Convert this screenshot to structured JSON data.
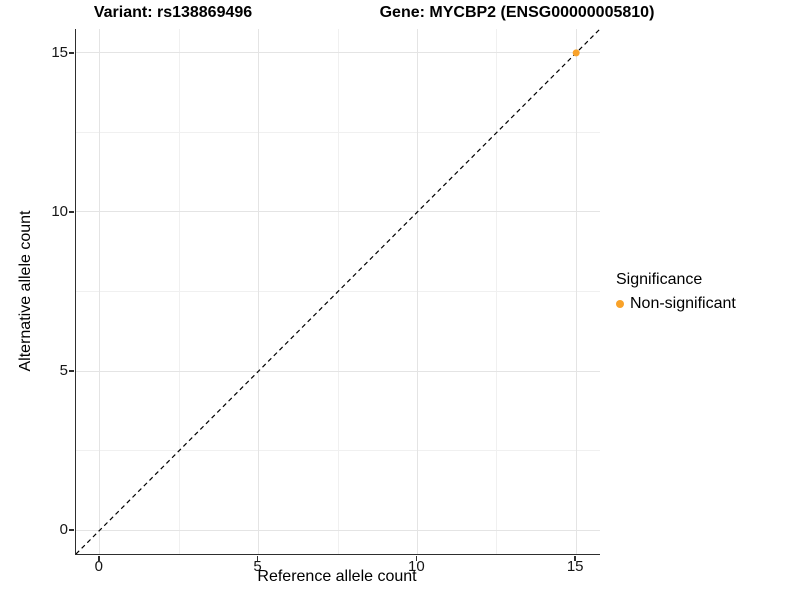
{
  "titles": {
    "variant": "Variant: rs138869496",
    "gene": "Gene: MYCBP2 (ENSG00000005810)"
  },
  "axes": {
    "x": {
      "label": "Reference allele count",
      "min": -0.75,
      "max": 15.75,
      "major_ticks": [
        0,
        5,
        10,
        15
      ],
      "minor_ticks": [
        2.5,
        7.5,
        12.5
      ]
    },
    "y": {
      "label": "Alternative allele count",
      "min": -0.75,
      "max": 15.75,
      "major_ticks": [
        0,
        5,
        10,
        15
      ],
      "minor_ticks": [
        2.5,
        7.5,
        12.5
      ]
    }
  },
  "legend": {
    "title": "Significance",
    "items": [
      {
        "label": "Non-significant",
        "color": "#f9a229"
      }
    ]
  },
  "chart_data": {
    "type": "scatter",
    "title": "Variant: rs138869496 — Gene: MYCBP2 (ENSG00000005810)",
    "xlabel": "Reference allele count",
    "ylabel": "Alternative allele count",
    "xlim": [
      -0.75,
      15.75
    ],
    "ylim": [
      -0.75,
      15.75
    ],
    "grid": "on",
    "legend_position": "right",
    "series": [
      {
        "name": "Non-significant",
        "color": "#f9a229",
        "points": [
          {
            "x": 15,
            "y": 15
          }
        ]
      }
    ],
    "reference_line": {
      "type": "identity y = x",
      "style": "dashed",
      "color": "#000000"
    }
  },
  "colors": {
    "point": "#f9a229",
    "axis_line": "#2e2e2e",
    "grid_major": "#e4e4e4",
    "grid_minor": "#f0f0f0",
    "background": "#ffffff"
  }
}
